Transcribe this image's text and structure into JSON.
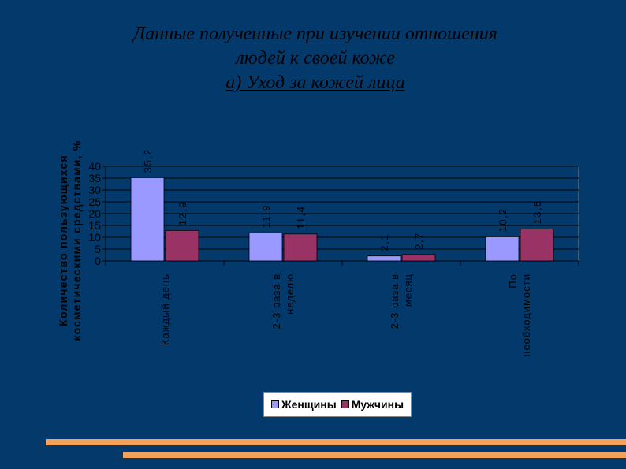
{
  "title": {
    "line1": "Данные  полученные при изучении отношения",
    "line2": "людей к своей коже",
    "line3": "а) Уход за кожей лица"
  },
  "colors": {
    "background": "#033a6b",
    "women": "#9999ff",
    "men": "#993366",
    "stripe": "#f5a15a"
  },
  "chart_data": {
    "type": "bar",
    "categories": [
      [
        "Каждый день"
      ],
      [
        "2-3 раза в",
        "неделю"
      ],
      [
        "2-3 раза в",
        "месяц"
      ],
      [
        "По",
        "необходимости"
      ]
    ],
    "series": [
      {
        "name": "Женщины",
        "values": [
          35.2,
          11.9,
          2.1,
          10.2
        ],
        "labels": [
          "35,2",
          "11,9",
          "2,1",
          "10,2"
        ]
      },
      {
        "name": "Мужчины",
        "values": [
          12.9,
          11.4,
          2.7,
          13.5
        ],
        "labels": [
          "12,9",
          "11,4",
          "2,7",
          "13,5"
        ]
      }
    ],
    "yticks": [
      "0",
      "5",
      "10",
      "15",
      "20",
      "25",
      "30",
      "35",
      "40"
    ],
    "ylim": [
      0,
      40
    ],
    "ylabel_line1": "Количество пользующихся",
    "ylabel_line2": "косметическими средствами, %",
    "grid": true,
    "legend": "bottom"
  }
}
